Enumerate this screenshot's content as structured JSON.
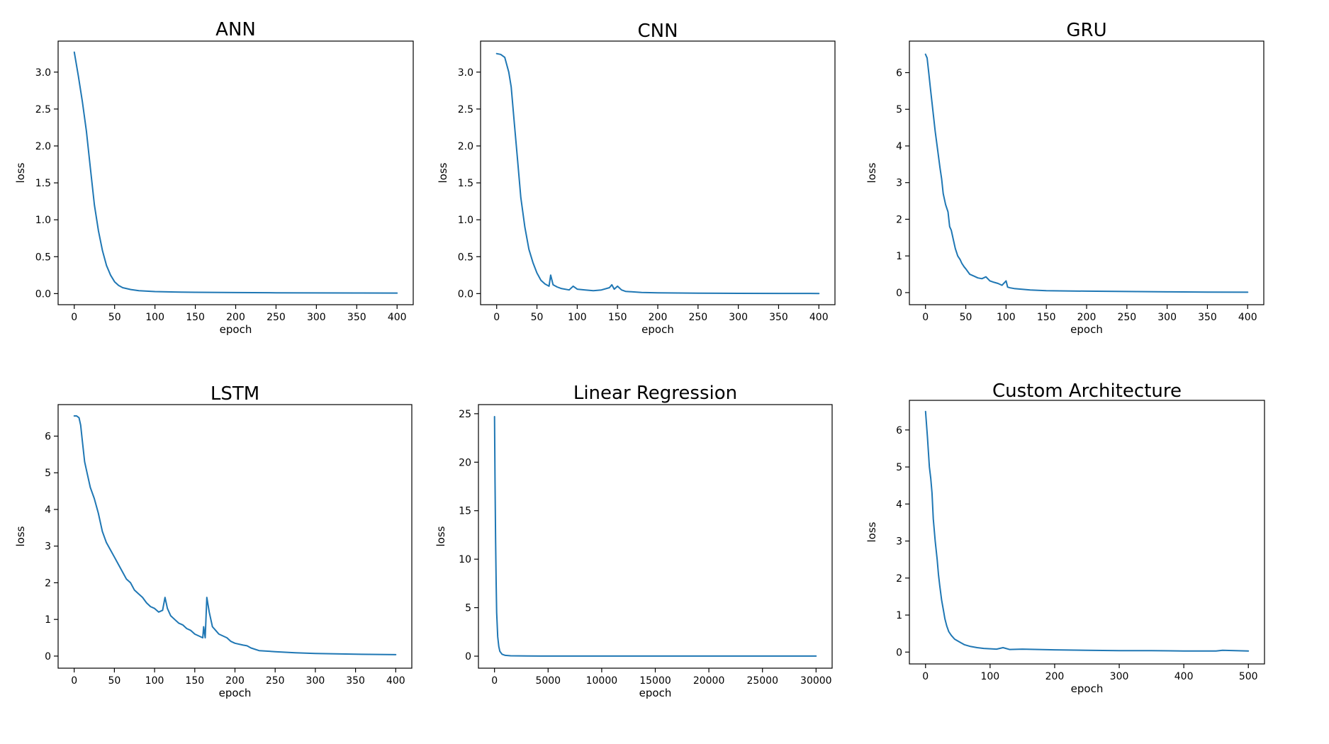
{
  "chart_data": [
    {
      "type": "line",
      "title": "ANN",
      "xlabel": "epoch",
      "ylabel": "loss",
      "xlim": [
        -20,
        420
      ],
      "ylim": [
        -0.15,
        3.42
      ],
      "xticks": [
        0,
        50,
        100,
        150,
        200,
        250,
        300,
        350,
        400
      ],
      "yticks": [
        0.0,
        0.5,
        1.0,
        1.5,
        2.0,
        2.5,
        3.0
      ],
      "ytick_decimals": 1,
      "color": "#1f77b4",
      "grid": false,
      "series": [
        {
          "x": [
            0,
            5,
            10,
            15,
            20,
            25,
            30,
            35,
            40,
            45,
            50,
            55,
            60,
            70,
            80,
            90,
            100,
            125,
            150,
            200,
            250,
            300,
            350,
            400
          ],
          "y": [
            3.27,
            2.95,
            2.6,
            2.2,
            1.7,
            1.2,
            0.85,
            0.58,
            0.38,
            0.25,
            0.16,
            0.11,
            0.08,
            0.055,
            0.04,
            0.033,
            0.028,
            0.022,
            0.018,
            0.014,
            0.011,
            0.009,
            0.008,
            0.007
          ]
        }
      ]
    },
    {
      "type": "line",
      "title": "CNN",
      "xlabel": "epoch",
      "ylabel": "loss",
      "xlim": [
        -20,
        420
      ],
      "ylim": [
        -0.15,
        3.42
      ],
      "xticks": [
        0,
        50,
        100,
        150,
        200,
        250,
        300,
        350,
        400
      ],
      "yticks": [
        0.0,
        0.5,
        1.0,
        1.5,
        2.0,
        2.5,
        3.0
      ],
      "ytick_decimals": 1,
      "color": "#1f77b4",
      "grid": false,
      "series": [
        {
          "x": [
            0,
            5,
            10,
            15,
            18,
            22,
            26,
            30,
            35,
            40,
            45,
            50,
            55,
            60,
            65,
            67,
            70,
            75,
            80,
            90,
            95,
            100,
            110,
            120,
            130,
            140,
            143,
            146,
            150,
            155,
            160,
            180,
            200,
            250,
            300,
            350,
            400
          ],
          "y": [
            3.25,
            3.24,
            3.2,
            3.0,
            2.8,
            2.3,
            1.8,
            1.3,
            0.9,
            0.6,
            0.42,
            0.28,
            0.18,
            0.13,
            0.1,
            0.25,
            0.12,
            0.09,
            0.07,
            0.05,
            0.1,
            0.06,
            0.05,
            0.04,
            0.05,
            0.08,
            0.12,
            0.06,
            0.1,
            0.05,
            0.03,
            0.015,
            0.01,
            0.006,
            0.004,
            0.003,
            0.002
          ]
        }
      ]
    },
    {
      "type": "line",
      "title": "GRU",
      "xlabel": "epoch",
      "ylabel": "loss",
      "xlim": [
        -20,
        420
      ],
      "ylim": [
        -0.33,
        6.86
      ],
      "xticks": [
        0,
        50,
        100,
        150,
        200,
        250,
        300,
        350,
        400
      ],
      "yticks": [
        0,
        1,
        2,
        3,
        4,
        5,
        6
      ],
      "ytick_decimals": 0,
      "color": "#1f77b4",
      "grid": false,
      "series": [
        {
          "x": [
            0,
            2,
            4,
            6,
            8,
            10,
            12,
            15,
            18,
            20,
            22,
            25,
            28,
            30,
            32,
            35,
            37,
            40,
            43,
            45,
            48,
            50,
            55,
            60,
            65,
            70,
            75,
            80,
            85,
            90,
            95,
            100,
            102,
            105,
            110,
            120,
            130,
            140,
            150,
            175,
            200,
            250,
            300,
            350,
            400
          ],
          "y": [
            6.5,
            6.4,
            6.0,
            5.6,
            5.2,
            4.8,
            4.4,
            3.9,
            3.4,
            3.1,
            2.7,
            2.4,
            2.2,
            1.8,
            1.7,
            1.4,
            1.2,
            1.0,
            0.9,
            0.8,
            0.7,
            0.65,
            0.5,
            0.45,
            0.4,
            0.38,
            0.43,
            0.32,
            0.28,
            0.25,
            0.2,
            0.32,
            0.15,
            0.13,
            0.11,
            0.09,
            0.07,
            0.06,
            0.05,
            0.045,
            0.04,
            0.03,
            0.02,
            0.015,
            0.01
          ]
        }
      ]
    },
    {
      "type": "line",
      "title": "LSTM",
      "xlabel": "epoch",
      "ylabel": "loss",
      "xlim": [
        -20,
        420
      ],
      "ylim": [
        -0.33,
        6.86
      ],
      "xticks": [
        0,
        50,
        100,
        150,
        200,
        250,
        300,
        350,
        400
      ],
      "yticks": [
        0,
        1,
        2,
        3,
        4,
        5,
        6
      ],
      "ytick_decimals": 0,
      "color": "#1f77b4",
      "grid": false,
      "series": [
        {
          "x": [
            0,
            3,
            6,
            8,
            10,
            13,
            16,
            20,
            25,
            30,
            35,
            40,
            45,
            50,
            55,
            60,
            65,
            70,
            75,
            80,
            85,
            90,
            95,
            100,
            105,
            110,
            113,
            116,
            120,
            125,
            130,
            135,
            140,
            145,
            150,
            155,
            160,
            161,
            163,
            165,
            168,
            172,
            176,
            180,
            185,
            190,
            195,
            200,
            210,
            215,
            220,
            230,
            250,
            275,
            300,
            350,
            400
          ],
          "y": [
            6.55,
            6.55,
            6.5,
            6.3,
            5.9,
            5.3,
            5.0,
            4.6,
            4.3,
            3.9,
            3.4,
            3.1,
            2.9,
            2.7,
            2.5,
            2.3,
            2.1,
            2.0,
            1.8,
            1.7,
            1.6,
            1.45,
            1.35,
            1.3,
            1.2,
            1.25,
            1.6,
            1.3,
            1.1,
            1.0,
            0.9,
            0.85,
            0.75,
            0.7,
            0.6,
            0.55,
            0.5,
            0.8,
            0.5,
            1.6,
            1.2,
            0.8,
            0.7,
            0.6,
            0.55,
            0.5,
            0.4,
            0.35,
            0.3,
            0.28,
            0.22,
            0.15,
            0.12,
            0.09,
            0.07,
            0.05,
            0.04
          ]
        }
      ]
    },
    {
      "type": "line",
      "title": "Linear Regression",
      "xlabel": "epoch",
      "ylabel": "loss",
      "xlim": [
        -1500,
        31500
      ],
      "ylim": [
        -1.24,
        25.94
      ],
      "xticks": [
        0,
        5000,
        10000,
        15000,
        20000,
        25000,
        30000
      ],
      "yticks": [
        0,
        5,
        10,
        15,
        20,
        25
      ],
      "ytick_decimals": 0,
      "color": "#1f77b4",
      "grid": false,
      "series": [
        {
          "x": [
            0,
            50,
            100,
            150,
            200,
            300,
            400,
            500,
            700,
            1000,
            1500,
            3000,
            10000,
            20000,
            30000
          ],
          "y": [
            24.7,
            18.0,
            12.0,
            7.5,
            4.5,
            2.0,
            1.0,
            0.5,
            0.2,
            0.08,
            0.04,
            0.02,
            0.01,
            0.01,
            0.01
          ]
        }
      ]
    },
    {
      "type": "line",
      "title": "Custom Architecture",
      "xlabel": "epoch",
      "ylabel": "loss",
      "xlim": [
        -25,
        525
      ],
      "ylim": [
        -0.32,
        6.8
      ],
      "xticks": [
        0,
        100,
        200,
        300,
        400,
        500
      ],
      "yticks": [
        0,
        1,
        2,
        3,
        4,
        5,
        6
      ],
      "ytick_decimals": 0,
      "color": "#1f77b4",
      "grid": false,
      "series": [
        {
          "x": [
            0,
            3,
            6,
            8,
            10,
            12,
            15,
            18,
            20,
            22,
            25,
            28,
            30,
            33,
            36,
            40,
            45,
            50,
            55,
            60,
            70,
            80,
            90,
            100,
            110,
            120,
            130,
            150,
            200,
            250,
            300,
            350,
            400,
            450,
            460,
            500
          ],
          "y": [
            6.5,
            5.8,
            5.0,
            4.7,
            4.3,
            3.6,
            3.0,
            2.5,
            2.1,
            1.8,
            1.4,
            1.1,
            0.9,
            0.7,
            0.55,
            0.45,
            0.35,
            0.3,
            0.25,
            0.2,
            0.15,
            0.12,
            0.1,
            0.09,
            0.08,
            0.12,
            0.07,
            0.08,
            0.06,
            0.05,
            0.04,
            0.04,
            0.03,
            0.03,
            0.05,
            0.03
          ]
        }
      ]
    }
  ]
}
